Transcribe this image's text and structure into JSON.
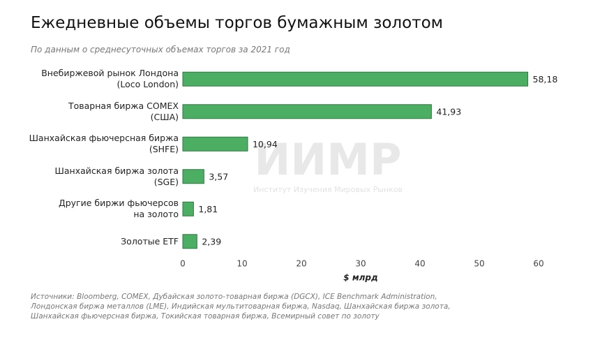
{
  "chart_data": {
    "type": "barh",
    "title": "Ежедневные объемы торгов бумажным золотом",
    "subtitle": "По данным о среднесуточных объемах торгов за 2021 год",
    "categories": [
      "Внебиржевой рынок Лондона\n(Loco London)",
      "Товарная биржа COMEX\n(США)",
      "Шанхайская фьючерсная биржа\n(SHFE)",
      "Шанхайская биржа золота\n(SGE)",
      "Другие биржи фьючерсов\nна золото",
      "Золотые ETF"
    ],
    "values": [
      58.18,
      41.93,
      10.94,
      3.57,
      1.81,
      2.39
    ],
    "value_labels": [
      "58,18",
      "41,93",
      "10,94",
      "3,57",
      "1,81",
      "2,39"
    ],
    "color": "#4cae62",
    "xlim": [
      0,
      60
    ],
    "xticks": [
      0,
      10,
      20,
      30,
      40,
      50,
      60
    ],
    "xlabel": "$ млрд",
    "watermark": "ИИМР",
    "watermark_subtitle": "Институт Изучения Мировых Рынков",
    "source": "Источники: Bloomberg, COMEX, Дубайская золото-товарная биржа (DGCX), ICE Benchmark Administration,\nЛондонская биржа металлов (LME), Индийская мультитоварная биржа, Nasdaq, Шанхайская биржа золота,\nШанхайская фьючерсная биржа, Токийская товарная биржа, Всемирный совет по золоту"
  }
}
